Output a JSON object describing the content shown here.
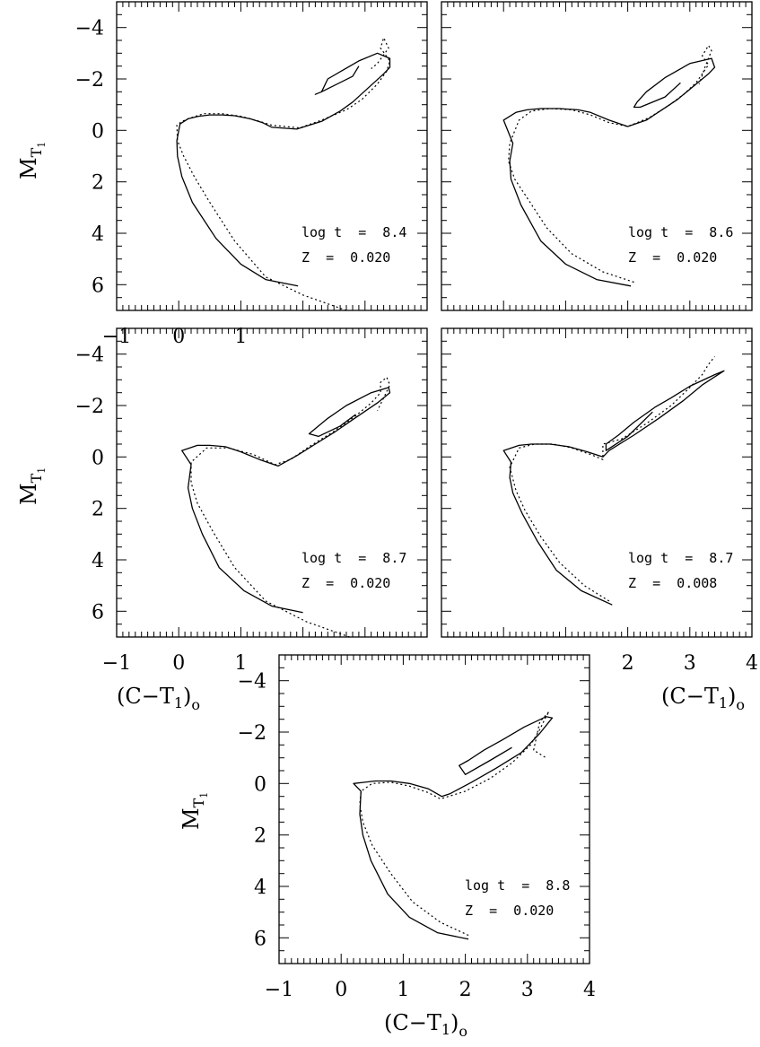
{
  "axis_text": {
    "x_label_main": "(C−T",
    "x_label_sub": "1",
    "x_label_close": ")",
    "x_label_sub2": "o",
    "y_label_main": "M",
    "y_label_sub": "T",
    "y_label_sub2": "1"
  },
  "chart_data": [
    {
      "type": "line",
      "panel": "top-left",
      "annotation": [
        "log t  =  8.4",
        "Z  =  0.020"
      ],
      "xlim": [
        -1,
        4
      ],
      "ylim": [
        7,
        -5
      ],
      "x_ticks_labeled": [
        "−1",
        "0",
        "1"
      ],
      "y_ticks": [
        "−4",
        "−2",
        "0",
        "2",
        "4",
        "6"
      ],
      "series": [
        {
          "style": "solid",
          "x": [
            1.92,
            1.4,
            1.0,
            0.6,
            0.22,
            0.05,
            -0.02,
            -0.03,
            0.02,
            0.15,
            0.32,
            0.5,
            0.7,
            0.9,
            1.15,
            1.35,
            1.5,
            1.9,
            2.3,
            2.6,
            2.8,
            3.3,
            3.4,
            3.4,
            3.2,
            2.9,
            2.4,
            2.3,
            2.2,
            2.3,
            2.8,
            2.9
          ],
          "y": [
            6.05,
            5.8,
            5.2,
            4.2,
            2.8,
            1.8,
            1.0,
            0.4,
            -0.25,
            -0.45,
            -0.55,
            -0.6,
            -0.6,
            -0.57,
            -0.45,
            -0.3,
            -0.12,
            -0.05,
            -0.35,
            -0.75,
            -1.1,
            -2.2,
            -2.45,
            -2.8,
            -3.0,
            -2.7,
            -2.0,
            -1.5,
            -1.4,
            -1.5,
            -2.1,
            -2.5
          ]
        },
        {
          "style": "dotted",
          "x": [
            2.7,
            2.0,
            1.4,
            0.9,
            0.5,
            0.25,
            0.08,
            -0.02,
            -0.03,
            0.05,
            0.15,
            0.4,
            0.7,
            1.0,
            1.3,
            1.5,
            1.95,
            2.3,
            2.7,
            2.95,
            3.2,
            3.35,
            3.4,
            3.25,
            3.3,
            3.38,
            3.2,
            3.1
          ],
          "y": [
            7.0,
            6.4,
            5.7,
            4.3,
            2.8,
            1.8,
            1.0,
            0.4,
            -0.2,
            -0.35,
            -0.45,
            -0.65,
            -0.65,
            -0.55,
            -0.35,
            -0.2,
            -0.1,
            -0.4,
            -0.8,
            -1.2,
            -1.8,
            -2.3,
            -2.7,
            -3.2,
            -3.6,
            -3.2,
            -2.6,
            -2.4
          ]
        }
      ]
    },
    {
      "type": "line",
      "panel": "top-right",
      "annotation": [
        "log t  =  8.6",
        "Z  =  0.020"
      ],
      "xlim": [
        -1,
        4
      ],
      "ylim": [
        7,
        -5
      ],
      "x_ticks_labeled": [],
      "y_ticks": [],
      "series": [
        {
          "style": "solid",
          "x": [
            2.05,
            1.5,
            1.0,
            0.6,
            0.28,
            0.12,
            0.1,
            0.15,
            0.0,
            0.2,
            0.38,
            0.6,
            0.9,
            1.2,
            1.4,
            1.7,
            2.0,
            2.3,
            2.55,
            2.8,
            3.3,
            3.4,
            3.35,
            3.0,
            2.6,
            2.3,
            2.15,
            2.1,
            2.2,
            2.6,
            2.85
          ],
          "y": [
            6.05,
            5.8,
            5.2,
            4.3,
            2.9,
            1.9,
            1.2,
            0.5,
            -0.4,
            -0.7,
            -0.8,
            -0.85,
            -0.85,
            -0.8,
            -0.7,
            -0.4,
            -0.15,
            -0.4,
            -0.8,
            -1.2,
            -2.2,
            -2.45,
            -2.8,
            -2.6,
            -2.05,
            -1.5,
            -1.1,
            -0.9,
            -0.9,
            -1.3,
            -1.85
          ]
        },
        {
          "style": "dotted",
          "x": [
            2.1,
            1.6,
            1.1,
            0.7,
            0.4,
            0.18,
            0.08,
            0.1,
            0.25,
            0.45,
            0.75,
            1.1,
            1.4,
            1.7,
            2.0,
            2.35,
            2.65,
            2.9,
            3.1,
            3.2,
            3.3,
            3.2,
            3.3,
            3.35,
            3.25,
            3.15
          ],
          "y": [
            5.9,
            5.5,
            4.8,
            3.8,
            2.7,
            1.9,
            1.2,
            0.5,
            -0.4,
            -0.75,
            -0.85,
            -0.8,
            -0.6,
            -0.3,
            -0.15,
            -0.5,
            -0.95,
            -1.4,
            -1.85,
            -2.2,
            -2.55,
            -2.9,
            -3.3,
            -3.1,
            -2.5,
            -1.8
          ]
        }
      ]
    },
    {
      "type": "line",
      "panel": "middle-left",
      "annotation": [
        "log t  =  8.7",
        "Z  =  0.020"
      ],
      "xlim": [
        -1,
        4
      ],
      "ylim": [
        7,
        -5
      ],
      "x_ticks_labeled": [
        "−1",
        "0",
        "1"
      ],
      "y_ticks": [
        "−4",
        "−2",
        "0",
        "2",
        "4",
        "6"
      ],
      "series": [
        {
          "style": "solid",
          "x": [
            2.0,
            1.5,
            1.05,
            0.65,
            0.38,
            0.22,
            0.15,
            0.2,
            0.05,
            0.3,
            0.5,
            0.75,
            1.0,
            1.3,
            1.6,
            1.9,
            2.2,
            2.5,
            2.8,
            3.2,
            3.4,
            3.38,
            3.1,
            2.7,
            2.4,
            2.2,
            2.1,
            2.25,
            2.6,
            2.85
          ],
          "y": [
            6.05,
            5.8,
            5.2,
            4.3,
            3.0,
            2.0,
            1.2,
            0.3,
            -0.25,
            -0.45,
            -0.45,
            -0.4,
            -0.2,
            0.1,
            0.35,
            -0.05,
            -0.5,
            -0.95,
            -1.45,
            -2.1,
            -2.5,
            -2.7,
            -2.5,
            -2.0,
            -1.5,
            -1.1,
            -0.9,
            -0.8,
            -1.2,
            -1.65
          ]
        },
        {
          "style": "dotted",
          "x": [
            2.75,
            2.05,
            1.4,
            0.9,
            0.55,
            0.3,
            0.2,
            0.2,
            0.45,
            0.8,
            1.2,
            1.55,
            1.8,
            2.1,
            2.5,
            2.85,
            3.1,
            3.25,
            3.25,
            3.35,
            3.4,
            3.3,
            3.2
          ],
          "y": [
            7.0,
            6.4,
            5.6,
            4.3,
            2.9,
            1.8,
            1.0,
            0.2,
            -0.35,
            -0.35,
            -0.1,
            0.3,
            0.1,
            -0.4,
            -1.0,
            -1.6,
            -2.1,
            -2.5,
            -2.9,
            -3.1,
            -2.8,
            -2.3,
            -1.8
          ]
        }
      ]
    },
    {
      "type": "line",
      "panel": "middle-right",
      "annotation": [
        "log t  =  8.7",
        "Z  =  0.008"
      ],
      "xlim": [
        -1,
        4
      ],
      "ylim": [
        7,
        -5
      ],
      "x_ticks_labeled": [
        "2",
        "3",
        "4"
      ],
      "y_ticks": [],
      "series": [
        {
          "style": "solid",
          "x": [
            1.75,
            1.25,
            0.85,
            0.55,
            0.3,
            0.15,
            0.1,
            0.12,
            0.0,
            0.25,
            0.45,
            0.75,
            1.05,
            1.35,
            1.6,
            1.7,
            2.1,
            2.5,
            2.9,
            3.2,
            3.55,
            3.4,
            3.0,
            2.7,
            2.45,
            2.1,
            1.85,
            1.65,
            1.65,
            2.0,
            2.4
          ],
          "y": [
            5.75,
            5.2,
            4.4,
            3.3,
            2.2,
            1.4,
            0.8,
            0.2,
            -0.25,
            -0.45,
            -0.5,
            -0.5,
            -0.4,
            -0.2,
            0.0,
            -0.25,
            -0.85,
            -1.5,
            -2.2,
            -2.8,
            -3.35,
            -3.2,
            -2.75,
            -2.3,
            -1.95,
            -1.35,
            -0.85,
            -0.5,
            -0.25,
            -0.8,
            -1.75
          ]
        },
        {
          "style": "dotted",
          "x": [
            1.7,
            1.3,
            0.9,
            0.6,
            0.35,
            0.2,
            0.1,
            0.25,
            0.5,
            0.8,
            1.1,
            1.4,
            1.6,
            1.6,
            1.6,
            1.9,
            2.3,
            2.7,
            3.0,
            3.2,
            3.3,
            3.4
          ],
          "y": [
            5.6,
            5.0,
            4.1,
            3.1,
            2.1,
            1.3,
            0.4,
            -0.35,
            -0.5,
            -0.5,
            -0.35,
            -0.1,
            0.1,
            -0.15,
            -0.5,
            -0.7,
            -1.3,
            -2.0,
            -2.7,
            -3.2,
            -3.6,
            -3.9
          ]
        }
      ]
    },
    {
      "type": "line",
      "panel": "bottom-center",
      "annotation": [
        "log t  =  8.8",
        "Z  =  0.020"
      ],
      "xlim": [
        -1,
        4
      ],
      "ylim": [
        7,
        -5
      ],
      "x_ticks_labeled": [
        "−1",
        "0",
        "1",
        "2",
        "3",
        "4"
      ],
      "y_ticks": [
        "−4",
        "−2",
        "0",
        "2",
        "4",
        "6"
      ],
      "series": [
        {
          "style": "solid",
          "x": [
            2.05,
            1.55,
            1.1,
            0.75,
            0.48,
            0.35,
            0.3,
            0.32,
            0.2,
            0.38,
            0.55,
            0.8,
            1.1,
            1.4,
            1.62,
            1.75,
            2.1,
            2.5,
            2.9,
            3.2,
            3.4,
            3.3,
            2.95,
            2.6,
            2.3,
            2.05,
            1.9,
            2.0,
            2.4,
            2.75
          ],
          "y": [
            6.05,
            5.8,
            5.2,
            4.3,
            3.0,
            2.0,
            1.2,
            0.3,
            0.0,
            -0.05,
            -0.1,
            -0.1,
            0.0,
            0.2,
            0.5,
            0.4,
            -0.05,
            -0.6,
            -1.2,
            -1.95,
            -2.55,
            -2.6,
            -2.2,
            -1.7,
            -1.3,
            -0.9,
            -0.7,
            -0.35,
            -0.9,
            -1.4
          ]
        },
        {
          "style": "dotted",
          "x": [
            2.05,
            1.6,
            1.15,
            0.8,
            0.5,
            0.35,
            0.3,
            0.32,
            0.5,
            0.8,
            1.1,
            1.4,
            1.6,
            2.0,
            2.4,
            2.75,
            3.05,
            3.2,
            3.3,
            3.35,
            3.2,
            3.1,
            3.3
          ],
          "y": [
            5.9,
            5.4,
            4.6,
            3.5,
            2.4,
            1.5,
            0.8,
            0.3,
            0.0,
            -0.05,
            0.1,
            0.35,
            0.6,
            0.3,
            -0.2,
            -0.8,
            -1.5,
            -2.1,
            -2.6,
            -2.8,
            -2.4,
            -1.3,
            -1.0
          ]
        }
      ]
    }
  ]
}
